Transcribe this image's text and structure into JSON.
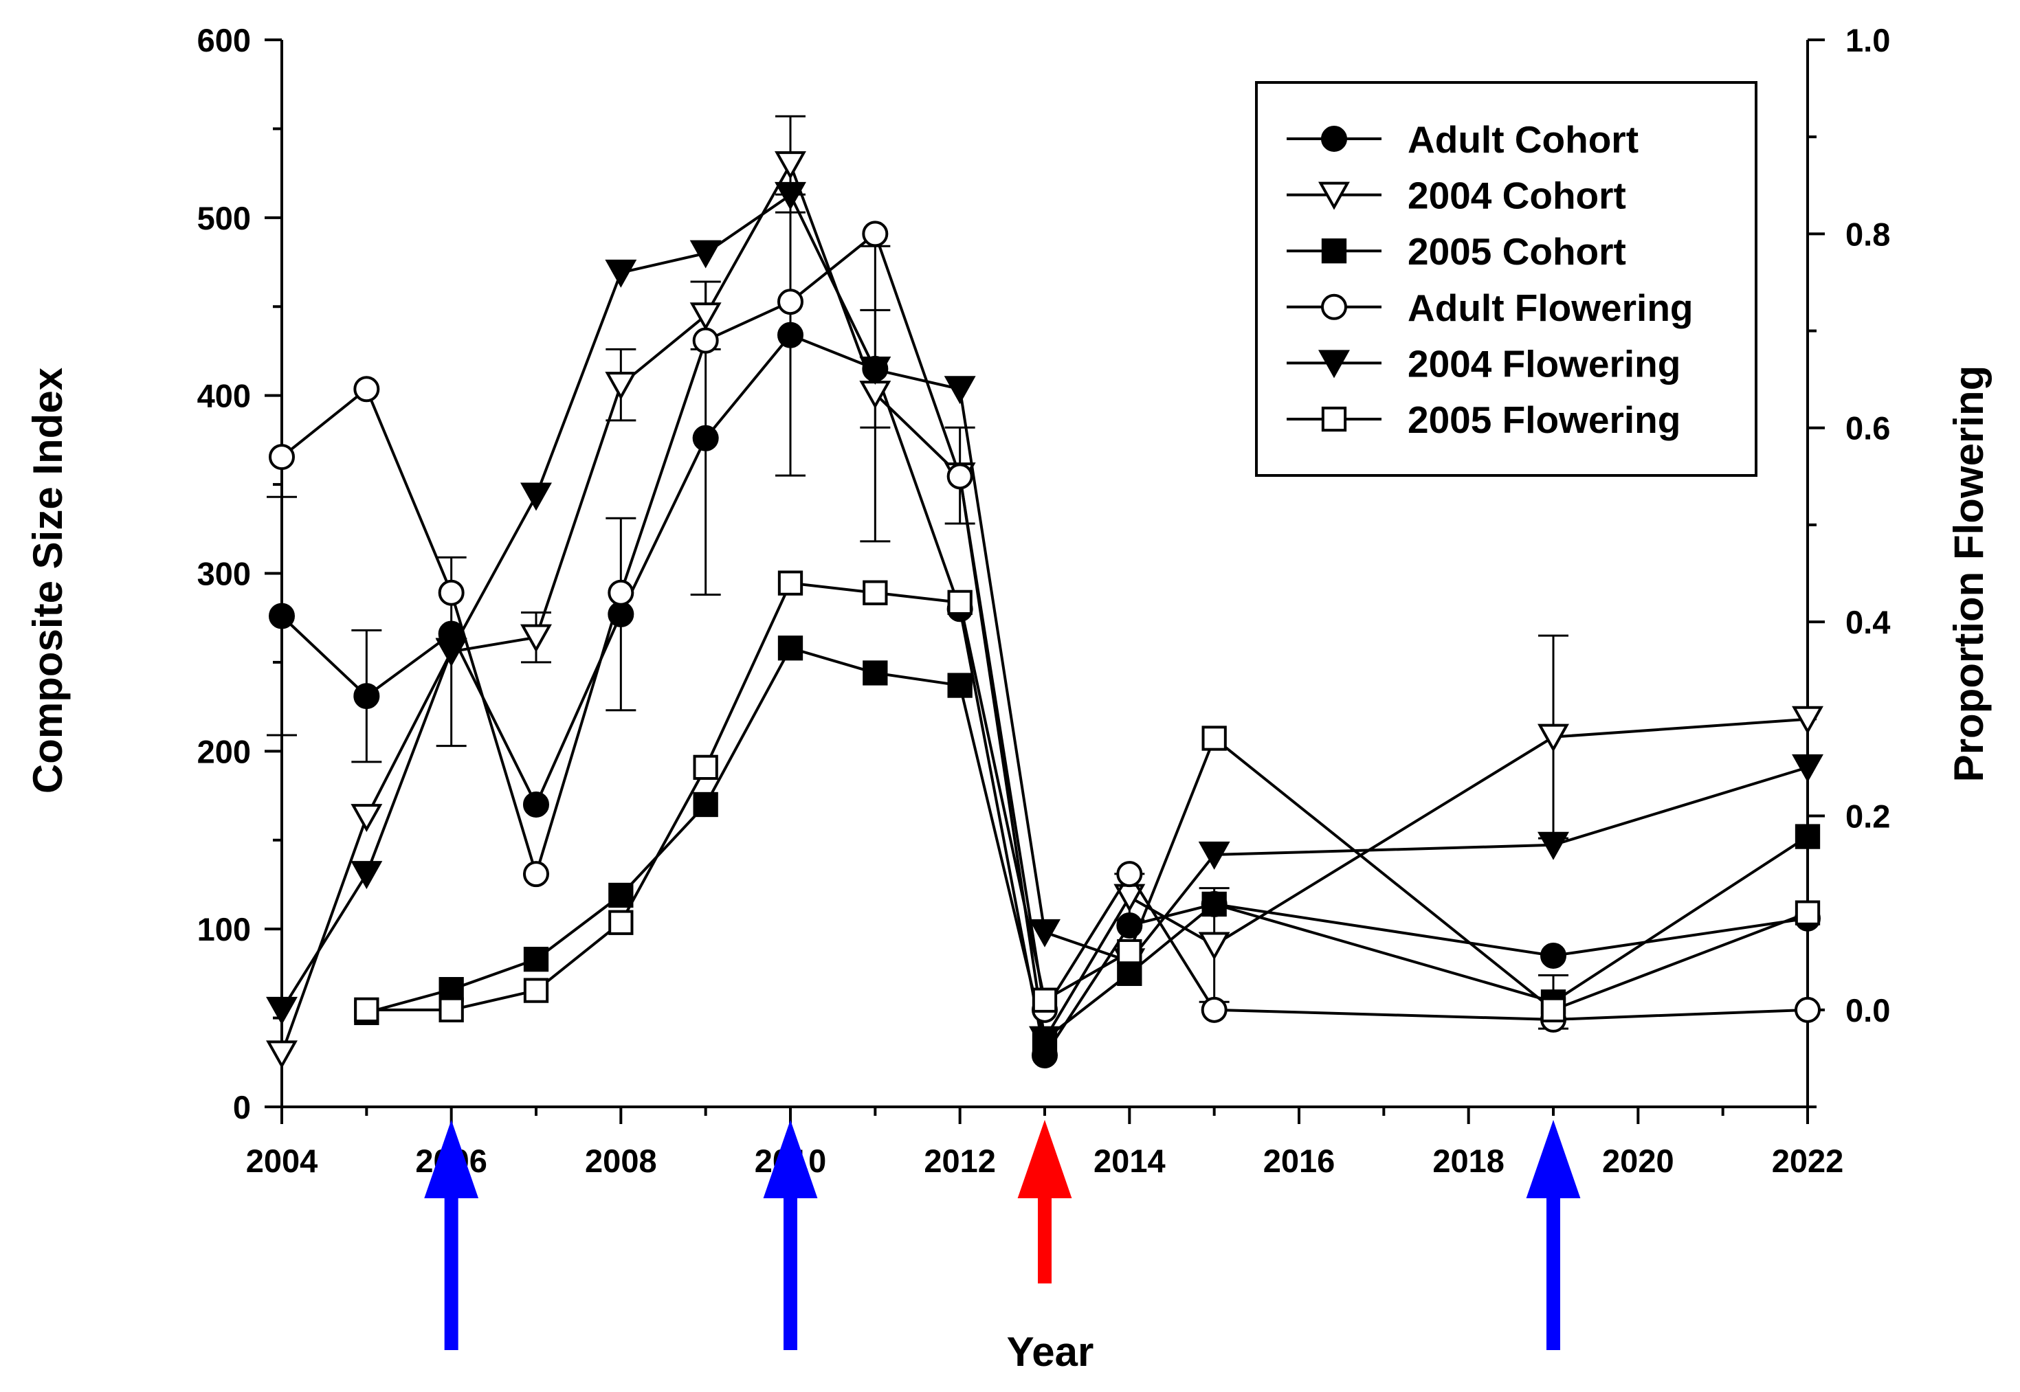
{
  "chart_data": {
    "type": "line",
    "xlabel": "Year",
    "ylabel": "Composite Size Index",
    "y2label": "Proportion Flowering",
    "xlim": [
      2004,
      2022
    ],
    "ylim": [
      0,
      600
    ],
    "y2lim": [
      -0.1,
      1.0
    ],
    "x_ticks": [
      "2004",
      "2006",
      "2008",
      "2010",
      "2012",
      "2014",
      "2016",
      "2018",
      "2020",
      "2022"
    ],
    "y_ticks": [
      "0",
      "100",
      "200",
      "300",
      "400",
      "500",
      "600"
    ],
    "y2_ticks": [
      "0.0",
      "0.2",
      "0.4",
      "0.6",
      "0.8",
      "1.0"
    ],
    "legend_position": "top-right",
    "series": [
      {
        "name": "Adult Cohort",
        "axis": "left",
        "marker": "circle",
        "filled": true,
        "x": [
          2004,
          2005,
          2006,
          2007,
          2008,
          2009,
          2010,
          2011,
          2012,
          2013,
          2014,
          2015,
          2019,
          2022
        ],
        "values": [
          276,
          231,
          266,
          170,
          277,
          376,
          434,
          415,
          280,
          29,
          102,
          114,
          85,
          106
        ],
        "err": [
          67,
          37,
          0,
          0,
          54,
          88,
          79,
          33,
          0,
          0,
          0,
          0,
          0,
          0
        ]
      },
      {
        "name": "2004 Cohort",
        "axis": "left",
        "marker": "triangle-down",
        "filled": false,
        "x": [
          2004,
          2005,
          2006,
          2007,
          2008,
          2009,
          2010,
          2011,
          2012,
          2013,
          2014,
          2015,
          2019,
          2022
        ],
        "values": [
          30,
          163,
          256,
          264,
          406,
          445,
          530,
          401,
          355,
          38,
          118,
          91,
          208,
          218
        ],
        "err": [
          0,
          0,
          53,
          14,
          20,
          19,
          27,
          83,
          27,
          0,
          13,
          32,
          57,
          0
        ]
      },
      {
        "name": "2005 Cohort",
        "axis": "left",
        "marker": "square",
        "filled": true,
        "x": [
          2005,
          2006,
          2007,
          2008,
          2009,
          2010,
          2011,
          2012,
          2013,
          2014,
          2015,
          2019,
          2022
        ],
        "values": [
          53,
          66,
          83,
          119,
          170,
          258,
          244,
          237,
          38,
          75,
          114,
          59,
          152
        ],
        "err": [
          0,
          0,
          0,
          0,
          0,
          0,
          0,
          0,
          0,
          0,
          0,
          15,
          0
        ]
      },
      {
        "name": "Adult Flowering",
        "axis": "right",
        "marker": "circle",
        "filled": false,
        "x": [
          2004,
          2005,
          2006,
          2007,
          2008,
          2009,
          2010,
          2011,
          2012,
          2013,
          2014,
          2015,
          2019,
          2022
        ],
        "values": [
          0.57,
          0.64,
          0.43,
          0.14,
          0.43,
          0.69,
          0.73,
          0.8,
          0.55,
          0.0,
          0.14,
          0.0,
          -0.01,
          0.0
        ]
      },
      {
        "name": "2004 Flowering",
        "axis": "right",
        "marker": "triangle-down",
        "filled": true,
        "x": [
          2004,
          2005,
          2006,
          2007,
          2008,
          2009,
          2010,
          2011,
          2012,
          2013,
          2014,
          2015,
          2019,
          2022
        ],
        "values": [
          0.0,
          0.14,
          0.37,
          0.53,
          0.76,
          0.78,
          0.84,
          0.66,
          0.64,
          0.08,
          0.05,
          0.16,
          0.17,
          0.25
        ]
      },
      {
        "name": "2005 Flowering",
        "axis": "right",
        "marker": "square",
        "filled": false,
        "x": [
          2005,
          2006,
          2007,
          2008,
          2009,
          2010,
          2011,
          2012,
          2013,
          2014,
          2015,
          2019,
          2022
        ],
        "values": [
          0.0,
          0.0,
          0.02,
          0.09,
          0.25,
          0.44,
          0.43,
          0.42,
          0.01,
          0.06,
          0.28,
          0.0,
          0.1
        ]
      }
    ],
    "annotations": [
      {
        "type": "arrow",
        "x": 2006,
        "color": "#0000ff"
      },
      {
        "type": "arrow",
        "x": 2010,
        "color": "#0000ff"
      },
      {
        "type": "arrow",
        "x": 2013,
        "color": "#ff0000"
      },
      {
        "type": "arrow",
        "x": 2019,
        "color": "#0000ff"
      }
    ]
  }
}
